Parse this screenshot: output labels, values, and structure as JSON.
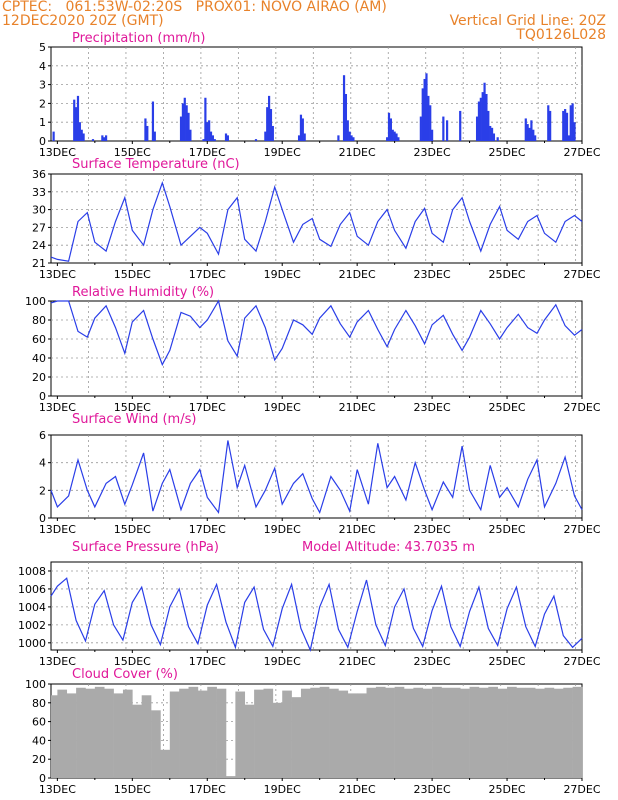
{
  "header": {
    "left1": "CPTEC:   061:53W-02:20S   PROX01: NOVO AIRAO (AM)",
    "left2": "12DEC2020 20Z (GMT)",
    "right1": "Vertical Grid Line: 20Z",
    "right2": "TQ0126L028"
  },
  "colors": {
    "series": "#2a3ee8",
    "title": "#e0189a",
    "header": "#e8822a",
    "cloud": "#aaaaaa",
    "grid": "#9a9a9a"
  },
  "chart_data": [
    {
      "type": "bar",
      "title": "Precipitation (mm/h)",
      "ylim": [
        0,
        5
      ],
      "yticks": [
        0,
        1,
        2,
        3,
        4,
        5
      ],
      "x_ticks": [
        "13DEC",
        "15DEC",
        "17DEC",
        "19DEC",
        "21DEC",
        "23DEC",
        "25DEC",
        "27DEC"
      ],
      "x_day_range": [
        12.83,
        27.0
      ],
      "series": [
        {
          "day": [
            12.9,
            13.45,
            13.5,
            13.55,
            13.6,
            13.65,
            13.7,
            13.95,
            14.2,
            14.25,
            14.3,
            15.35,
            15.4,
            15.55,
            15.6,
            16.3,
            16.35,
            16.4,
            16.45,
            16.5,
            16.55,
            16.9,
            16.95,
            17.0,
            17.05,
            17.1,
            17.15,
            17.2,
            17.5,
            17.55,
            18.3,
            18.55,
            18.6,
            18.65,
            18.7,
            18.75,
            19.45,
            19.5,
            19.55,
            19.6,
            20.5,
            20.65,
            20.7,
            20.75,
            20.8,
            20.85,
            20.9,
            21.8,
            21.85,
            21.9,
            21.95,
            22.0,
            22.05,
            22.1,
            22.7,
            22.75,
            22.8,
            22.85,
            22.9,
            22.95,
            23.0,
            23.3,
            23.4,
            23.75,
            24.2,
            24.25,
            24.3,
            24.35,
            24.4,
            24.45,
            24.5,
            24.55,
            24.6,
            24.65,
            24.75,
            25.5,
            25.55,
            25.6,
            25.65,
            25.7,
            25.75,
            26.1,
            26.15,
            26.5,
            26.55,
            26.6,
            26.65,
            26.7,
            26.75,
            26.8
          ],
          "values": [
            0.5,
            2.2,
            1.8,
            2.4,
            1.0,
            0.6,
            0.4,
            0.1,
            0.3,
            0.2,
            0.3,
            1.2,
            0.8,
            2.1,
            0.5,
            1.3,
            2.0,
            2.3,
            1.9,
            1.5,
            0.6,
            0.1,
            2.3,
            1.0,
            1.1,
            0.5,
            0.3,
            0.1,
            0.4,
            0.3,
            0.1,
            0.5,
            1.8,
            2.4,
            1.7,
            0.8,
            0.3,
            1.4,
            1.2,
            0.4,
            0.3,
            3.5,
            2.5,
            1.1,
            0.5,
            0.3,
            0.2,
            0.2,
            1.5,
            1.2,
            0.6,
            0.5,
            0.4,
            0.2,
            1.3,
            2.8,
            3.3,
            3.6,
            2.4,
            1.9,
            0.6,
            1.3,
            1.1,
            1.6,
            1.3,
            2.1,
            2.3,
            2.6,
            3.1,
            2.5,
            1.6,
            0.8,
            0.7,
            0.4,
            0.2,
            1.2,
            0.9,
            0.7,
            1.1,
            0.6,
            0.3,
            1.9,
            1.6,
            1.6,
            1.7,
            1.5,
            0.3,
            1.9,
            2.0,
            1.0
          ]
        }
      ]
    },
    {
      "type": "line",
      "title": "Surface Temperature (nC)",
      "ylim": [
        21,
        36
      ],
      "yticks": [
        21,
        24,
        27,
        30,
        33,
        36
      ],
      "x_ticks": [
        "13DEC",
        "15DEC",
        "17DEC",
        "19DEC",
        "21DEC",
        "23DEC",
        "25DEC",
        "27DEC"
      ],
      "x_day_range": [
        12.83,
        27.0
      ],
      "series": [
        {
          "day": [
            12.83,
            13.0,
            13.3,
            13.55,
            13.8,
            14.0,
            14.3,
            14.55,
            14.8,
            15.0,
            15.3,
            15.55,
            15.8,
            16.0,
            16.3,
            16.55,
            16.8,
            17.0,
            17.3,
            17.55,
            17.8,
            18.0,
            18.3,
            18.55,
            18.8,
            19.0,
            19.3,
            19.55,
            19.8,
            20.0,
            20.3,
            20.55,
            20.8,
            21.0,
            21.3,
            21.55,
            21.8,
            22.0,
            22.3,
            22.55,
            22.8,
            23.0,
            23.3,
            23.55,
            23.8,
            24.0,
            24.3,
            24.55,
            24.8,
            25.0,
            25.3,
            25.55,
            25.8,
            26.0,
            26.3,
            26.55,
            26.8,
            27.0
          ],
          "values": [
            22.0,
            21.6,
            21.3,
            28.0,
            29.5,
            24.5,
            23.0,
            28.0,
            32.0,
            26.5,
            24.0,
            30.0,
            34.5,
            30.5,
            24.0,
            25.5,
            27.0,
            26.0,
            22.5,
            30.0,
            32.0,
            25.0,
            23.0,
            28.0,
            33.8,
            30.0,
            24.5,
            27.5,
            28.5,
            25.0,
            23.8,
            27.5,
            29.5,
            25.5,
            24.0,
            28.0,
            30.0,
            26.5,
            23.5,
            28.0,
            30.2,
            26.0,
            24.5,
            30.0,
            32.0,
            28.0,
            23.0,
            27.5,
            30.5,
            26.5,
            25.0,
            28.0,
            29.0,
            26.0,
            24.5,
            28.0,
            29.0,
            28.0
          ]
        }
      ]
    },
    {
      "type": "line",
      "title": "Relative Humidity (%)",
      "ylim": [
        0,
        100
      ],
      "yticks": [
        0,
        20,
        40,
        60,
        80,
        100
      ],
      "x_ticks": [
        "13DEC",
        "15DEC",
        "17DEC",
        "19DEC",
        "21DEC",
        "23DEC",
        "25DEC",
        "27DEC"
      ],
      "x_day_range": [
        12.83,
        27.0
      ],
      "series": [
        {
          "day": [
            12.83,
            13.0,
            13.3,
            13.55,
            13.8,
            14.0,
            14.3,
            14.55,
            14.8,
            15.0,
            15.3,
            15.55,
            15.8,
            16.0,
            16.3,
            16.55,
            16.8,
            17.0,
            17.3,
            17.55,
            17.8,
            18.0,
            18.3,
            18.55,
            18.8,
            19.0,
            19.3,
            19.55,
            19.8,
            20.0,
            20.3,
            20.55,
            20.8,
            21.0,
            21.3,
            21.55,
            21.8,
            22.0,
            22.3,
            22.55,
            22.8,
            23.0,
            23.3,
            23.55,
            23.8,
            24.0,
            24.3,
            24.55,
            24.8,
            25.0,
            25.3,
            25.55,
            25.8,
            26.0,
            26.3,
            26.55,
            26.8,
            27.0
          ],
          "values": [
            98,
            100,
            100,
            68,
            62,
            82,
            95,
            72,
            45,
            78,
            90,
            60,
            33,
            48,
            88,
            84,
            72,
            80,
            100,
            58,
            42,
            82,
            95,
            72,
            38,
            50,
            80,
            75,
            65,
            82,
            95,
            76,
            62,
            78,
            90,
            70,
            52,
            70,
            90,
            74,
            55,
            75,
            85,
            65,
            48,
            62,
            90,
            76,
            60,
            72,
            86,
            72,
            66,
            80,
            96,
            74,
            64,
            70
          ]
        }
      ]
    },
    {
      "type": "line",
      "title": "Surface Wind (m/s)",
      "ylim": [
        0,
        6
      ],
      "yticks": [
        0,
        2,
        4,
        6
      ],
      "x_ticks": [
        "13DEC",
        "15DEC",
        "17DEC",
        "19DEC",
        "21DEC",
        "23DEC",
        "25DEC",
        "27DEC"
      ],
      "x_day_range": [
        12.83,
        27.0
      ],
      "series": [
        {
          "day": [
            12.83,
            13.0,
            13.3,
            13.55,
            13.8,
            14.0,
            14.3,
            14.55,
            14.8,
            15.0,
            15.3,
            15.55,
            15.8,
            16.0,
            16.3,
            16.55,
            16.8,
            17.0,
            17.3,
            17.55,
            17.8,
            18.0,
            18.3,
            18.55,
            18.8,
            19.0,
            19.3,
            19.55,
            19.8,
            20.0,
            20.3,
            20.55,
            20.8,
            21.0,
            21.3,
            21.55,
            21.8,
            22.0,
            22.3,
            22.55,
            22.8,
            23.0,
            23.3,
            23.55,
            23.8,
            24.0,
            24.3,
            24.55,
            24.8,
            25.0,
            25.3,
            25.55,
            25.8,
            26.0,
            26.3,
            26.55,
            26.8,
            27.0
          ],
          "values": [
            2.0,
            0.8,
            1.6,
            4.2,
            2.0,
            0.8,
            2.5,
            3.0,
            1.0,
            2.4,
            4.7,
            0.5,
            2.5,
            3.5,
            0.6,
            2.5,
            3.5,
            1.5,
            0.4,
            5.6,
            2.2,
            3.8,
            0.8,
            2.0,
            3.6,
            1.0,
            2.5,
            3.2,
            1.4,
            0.4,
            3.0,
            2.0,
            0.5,
            3.5,
            1.0,
            5.4,
            2.2,
            3.0,
            1.3,
            4.0,
            2.0,
            0.6,
            2.6,
            1.5,
            5.2,
            2.0,
            0.6,
            3.8,
            1.5,
            2.2,
            0.8,
            2.8,
            4.2,
            0.8,
            2.5,
            4.4,
            1.6,
            0.6
          ]
        }
      ]
    },
    {
      "type": "line",
      "title": "Surface Pressure (hPa)",
      "annotation": "Model Altitude: 43.7035 m",
      "ylim": [
        999.2,
        1009
      ],
      "yticks": [
        1000,
        1002,
        1004,
        1006,
        1008
      ],
      "x_ticks": [
        "13DEC",
        "15DEC",
        "17DEC",
        "19DEC",
        "21DEC",
        "23DEC",
        "25DEC",
        "27DEC"
      ],
      "x_day_range": [
        12.83,
        27.0
      ],
      "series": [
        {
          "day": [
            12.83,
            13.0,
            13.25,
            13.5,
            13.75,
            14.0,
            14.25,
            14.5,
            14.75,
            15.0,
            15.25,
            15.5,
            15.75,
            16.0,
            16.25,
            16.5,
            16.75,
            17.0,
            17.25,
            17.5,
            17.75,
            18.0,
            18.25,
            18.5,
            18.75,
            19.0,
            19.25,
            19.5,
            19.75,
            20.0,
            20.25,
            20.5,
            20.75,
            21.0,
            21.25,
            21.5,
            21.75,
            22.0,
            22.25,
            22.5,
            22.75,
            23.0,
            23.25,
            23.5,
            23.75,
            24.0,
            24.25,
            24.5,
            24.75,
            25.0,
            25.25,
            25.5,
            25.75,
            26.0,
            26.25,
            26.5,
            26.75,
            27.0
          ],
          "values": [
            1005.2,
            1006.3,
            1007.2,
            1002.5,
            1000.2,
            1004.3,
            1005.8,
            1002.0,
            1000.3,
            1004.5,
            1006.2,
            1002.0,
            999.8,
            1004.0,
            1006.0,
            1001.8,
            999.9,
            1004.2,
            1006.5,
            1002.3,
            999.5,
            1004.5,
            1006.2,
            1001.5,
            999.6,
            1003.8,
            1006.5,
            1001.6,
            999.2,
            1004.0,
            1006.5,
            1001.5,
            999.5,
            1003.5,
            1007.0,
            1002.0,
            999.7,
            1004.0,
            1006.0,
            1001.6,
            999.6,
            1003.6,
            1006.3,
            1001.8,
            999.6,
            1003.5,
            1006.2,
            1001.6,
            999.7,
            1003.8,
            1006.2,
            1001.8,
            999.6,
            1003.2,
            1005.2,
            1000.8,
            999.5,
            1000.5
          ]
        }
      ]
    },
    {
      "type": "area",
      "title": "Cloud Cover (%)",
      "ylim": [
        0,
        100
      ],
      "yticks": [
        0,
        20,
        40,
        60,
        80,
        100
      ],
      "x_ticks": [
        "13DEC",
        "15DEC",
        "17DEC",
        "19DEC",
        "21DEC",
        "23DEC",
        "25DEC",
        "27DEC"
      ],
      "x_day_range": [
        12.83,
        27.0
      ],
      "series": [
        {
          "day": [
            12.83,
            13.0,
            13.25,
            13.5,
            13.75,
            14.0,
            14.25,
            14.5,
            14.75,
            15.0,
            15.25,
            15.5,
            15.75,
            16.0,
            16.25,
            16.5,
            16.75,
            17.0,
            17.25,
            17.5,
            17.75,
            18.0,
            18.25,
            18.5,
            18.75,
            19.0,
            19.25,
            19.5,
            19.75,
            20.0,
            20.25,
            20.5,
            20.75,
            21.0,
            21.25,
            21.5,
            21.75,
            22.0,
            22.25,
            22.5,
            22.75,
            23.0,
            23.25,
            23.5,
            23.75,
            24.0,
            24.25,
            24.5,
            24.75,
            25.0,
            25.25,
            25.5,
            25.75,
            26.0,
            26.25,
            26.5,
            26.75,
            27.0
          ],
          "values": [
            88,
            94,
            90,
            96,
            95,
            97,
            95,
            90,
            94,
            78,
            88,
            72,
            30,
            92,
            95,
            97,
            93,
            97,
            95,
            2,
            92,
            78,
            94,
            95,
            80,
            93,
            86,
            95,
            96,
            97,
            95,
            93,
            90,
            90,
            96,
            97,
            96,
            97,
            95,
            96,
            95,
            97,
            96,
            96,
            95,
            97,
            96,
            97,
            95,
            97,
            96,
            96,
            95,
            96,
            95,
            96,
            97,
            92
          ]
        }
      ]
    }
  ]
}
